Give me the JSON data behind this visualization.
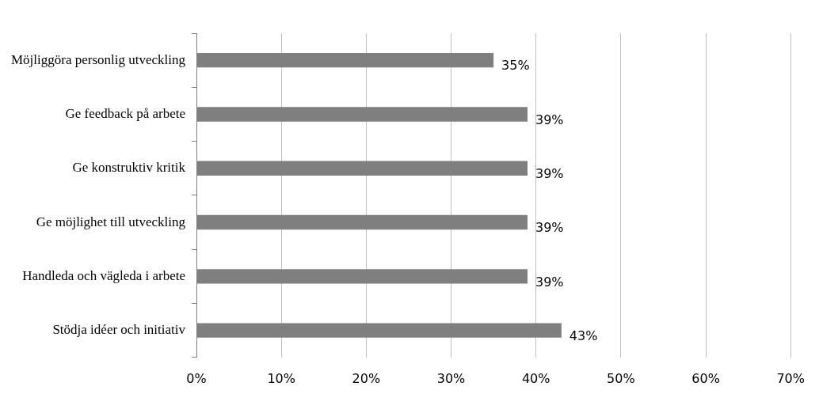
{
  "chart_data": {
    "type": "bar",
    "orientation": "horizontal",
    "categories": [
      "Möjliggöra personlig utveckling",
      "Ge feedback på arbete",
      "Ge konstruktiv kritik",
      "Ge möjlighet till utveckling",
      "Handleda och vägleda i arbete",
      "Stödja idéer och initiativ"
    ],
    "values": [
      35,
      39,
      39,
      39,
      39,
      43
    ],
    "value_labels": [
      "35%",
      "39%",
      "39%",
      "39%",
      "39%",
      "43%"
    ],
    "color": "#7f7f7f",
    "xlim": [
      0,
      70
    ],
    "xticks": [
      {
        "value": 0,
        "label": "0%"
      },
      {
        "value": 10,
        "label": "10%"
      },
      {
        "value": 20,
        "label": "20%"
      },
      {
        "value": 30,
        "label": "30%"
      },
      {
        "value": 40,
        "label": "40%"
      },
      {
        "value": 50,
        "label": "50%"
      },
      {
        "value": 60,
        "label": "60%"
      },
      {
        "value": 70,
        "label": "70%"
      }
    ],
    "grid": "x",
    "legend": false
  }
}
